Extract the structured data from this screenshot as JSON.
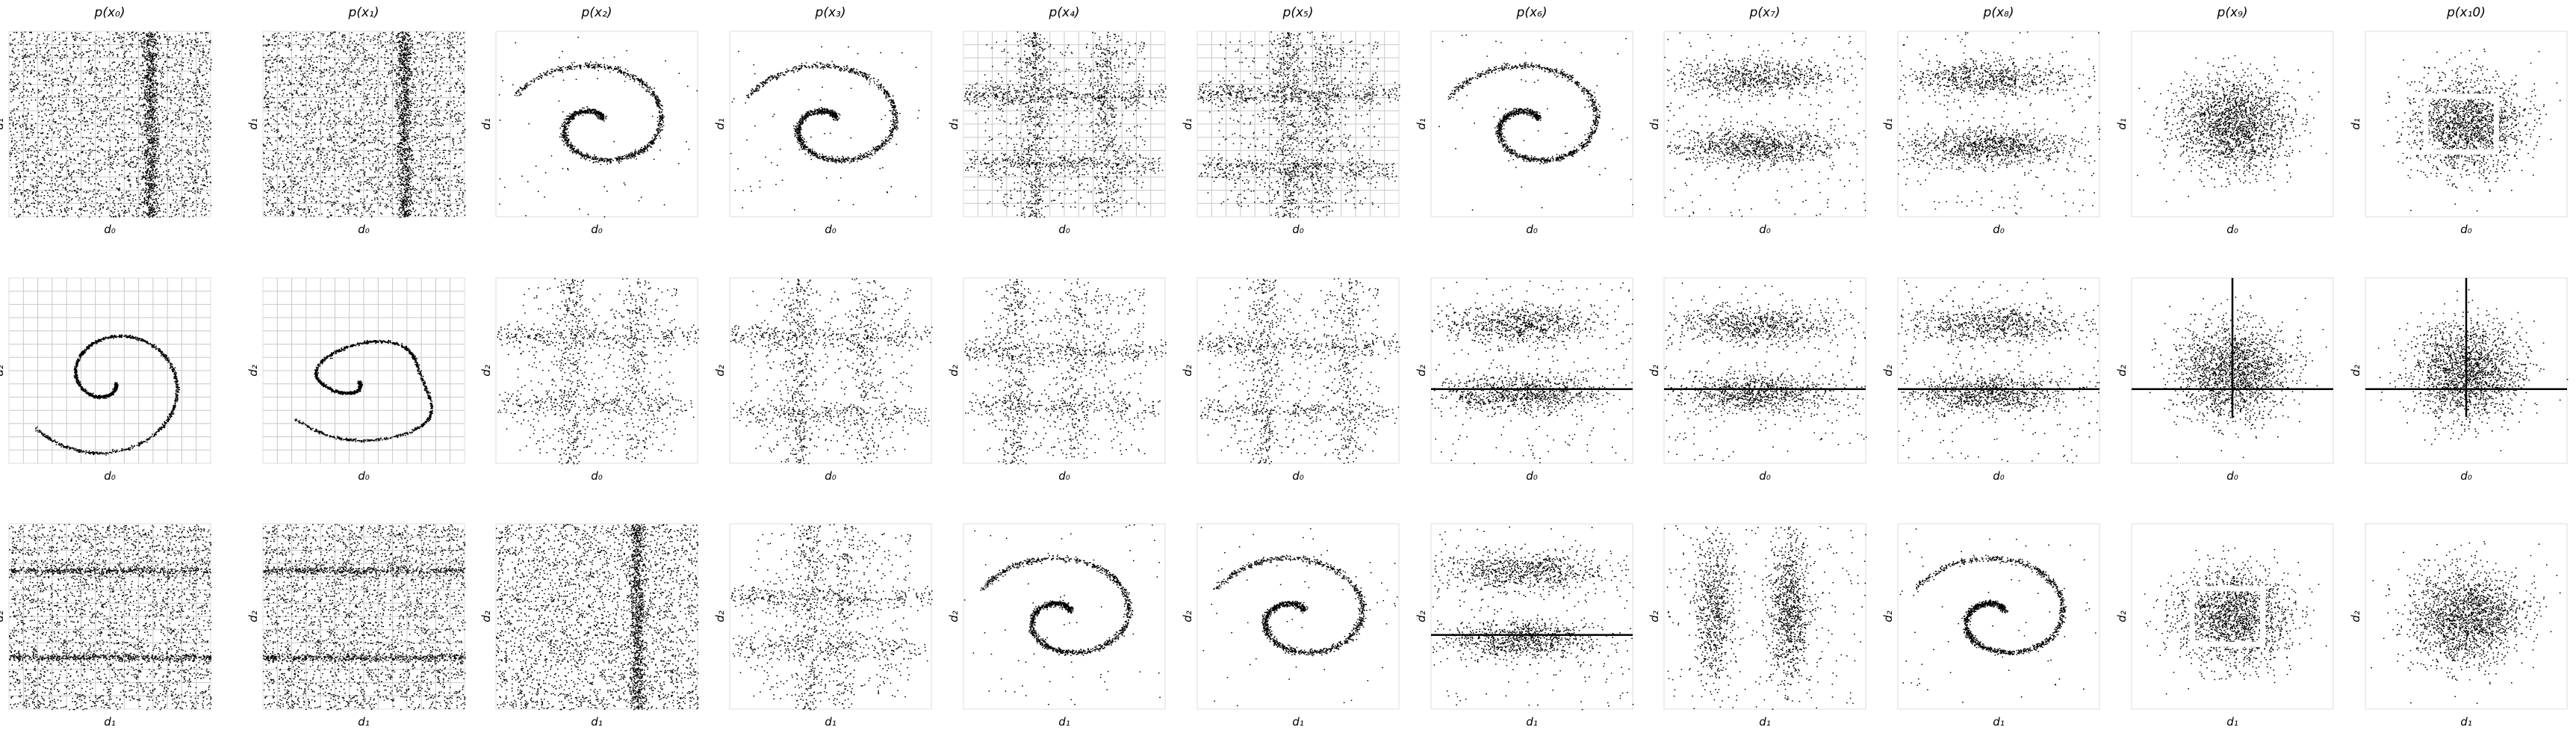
{
  "figure": {
    "column_titles": [
      "p(x_0)",
      "p(x_1)",
      "p(x_2)",
      "p(x_3)",
      "p(x_4)",
      "p(x_5)",
      "p(x_6)",
      "p(x_7)",
      "p(x_8)",
      "p(x_9)",
      "p(x_10)"
    ],
    "column_titles_display": [
      "p(x₀)",
      "p(x₁)",
      "p(x₂)",
      "p(x₃)",
      "p(x₄)",
      "p(x₅)",
      "p(x₆)",
      "p(x₇)",
      "p(x₈)",
      "p(x₉)",
      "p(x₁0)"
    ],
    "rows": [
      {
        "xlabel": "d₀",
        "ylabel": "d₁"
      },
      {
        "xlabel": "d₀",
        "ylabel": "d₂"
      },
      {
        "xlabel": "d₁",
        "ylabel": "d₂"
      }
    ],
    "point_color": "#000000",
    "grid_color": "#c8c8c8"
  },
  "chart_data": {
    "type": "scatter",
    "panel_grid": {
      "rows": 3,
      "cols": 11
    },
    "note": "Pairwise 2-D projections of samples; axes carry no ticks",
    "panels_spec": [
      [
        "uniform-band",
        "uniform-band",
        "spiral-open",
        "spiral-open",
        "cross-dense",
        "cross-dense",
        "spiral-open",
        "blob-bands",
        "blob-bands",
        "blob",
        "blob-box"
      ],
      [
        "spiral",
        "spiral-warped",
        "cross-sparse",
        "cross-sparse",
        "cross-sparse",
        "cross-sparse",
        "bands-h",
        "bands-h",
        "bands-h",
        "blob-line",
        "blob-line"
      ],
      [
        "uniform-band-h",
        "uniform-band-h",
        "uniform-band-v",
        "cross-sparse",
        "spiral-open",
        "spiral-open",
        "bands-h",
        "bands-v",
        "spiral-open",
        "blob-box",
        "blob"
      ]
    ]
  }
}
